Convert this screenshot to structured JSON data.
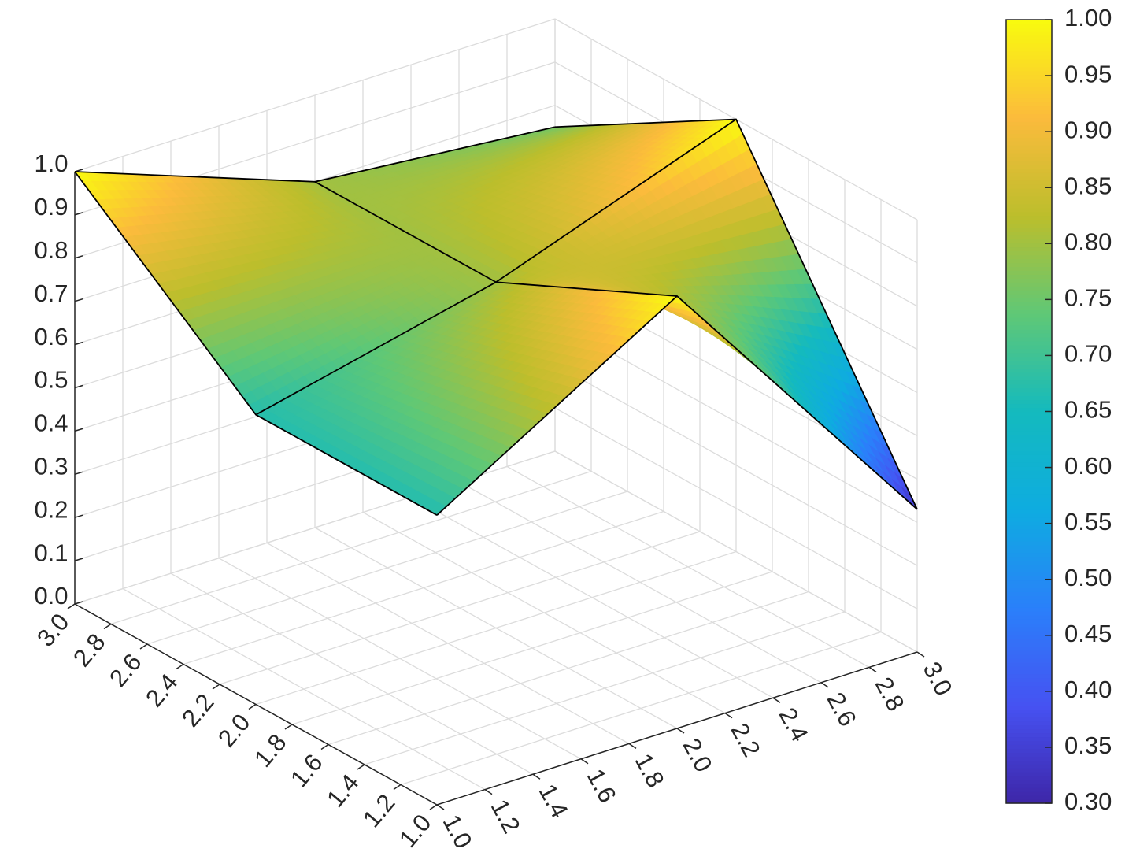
{
  "chart_data": {
    "type": "surface",
    "x": [
      1,
      2,
      3
    ],
    "y": [
      1,
      2,
      3
    ],
    "z": [
      [
        0.67,
        1.0,
        0.33
      ],
      [
        0.67,
        0.8,
        1.0
      ],
      [
        1.0,
        0.8,
        0.75
      ]
    ],
    "xlim": [
      1,
      3
    ],
    "ylim": [
      1,
      3
    ],
    "zlim": [
      0,
      1
    ],
    "xticks": [
      {
        "value": 1,
        "label": "1.0"
      },
      1.2,
      1.4,
      1.6,
      1.8,
      {
        "value": 2,
        "label": "2.0"
      },
      2.2,
      2.4,
      2.6,
      2.8,
      {
        "value": 3,
        "label": "3.0"
      }
    ],
    "yticks": [
      {
        "value": 1,
        "label": "1.0"
      },
      1.2,
      1.4,
      1.6,
      1.8,
      {
        "value": 2,
        "label": "2.0"
      },
      2.2,
      2.4,
      2.6,
      2.8,
      {
        "value": 3,
        "label": "3.0"
      }
    ],
    "zticks": [
      {
        "value": 0,
        "label": "0.0"
      },
      0.1,
      0.2,
      0.3,
      0.4,
      0.5,
      0.6,
      0.7,
      0.8,
      0.9,
      {
        "value": 1,
        "label": "1.0"
      }
    ],
    "clim": [
      0.3,
      1.0
    ],
    "colorbar_ticks": [
      {
        "value": 0.3,
        "label": "0.30"
      },
      0.35,
      {
        "value": 0.4,
        "label": "0.40"
      },
      0.45,
      {
        "value": 0.5,
        "label": "0.50"
      },
      0.55,
      {
        "value": 0.6,
        "label": "0.60"
      },
      0.65,
      {
        "value": 0.7,
        "label": "0.70"
      },
      0.75,
      {
        "value": 0.8,
        "label": "0.80"
      },
      0.85,
      {
        "value": 0.9,
        "label": "0.90"
      },
      0.95,
      {
        "value": 1.0,
        "label": "1.00"
      }
    ],
    "colormap": "parula",
    "grid": true,
    "edge_color": "#000000"
  }
}
